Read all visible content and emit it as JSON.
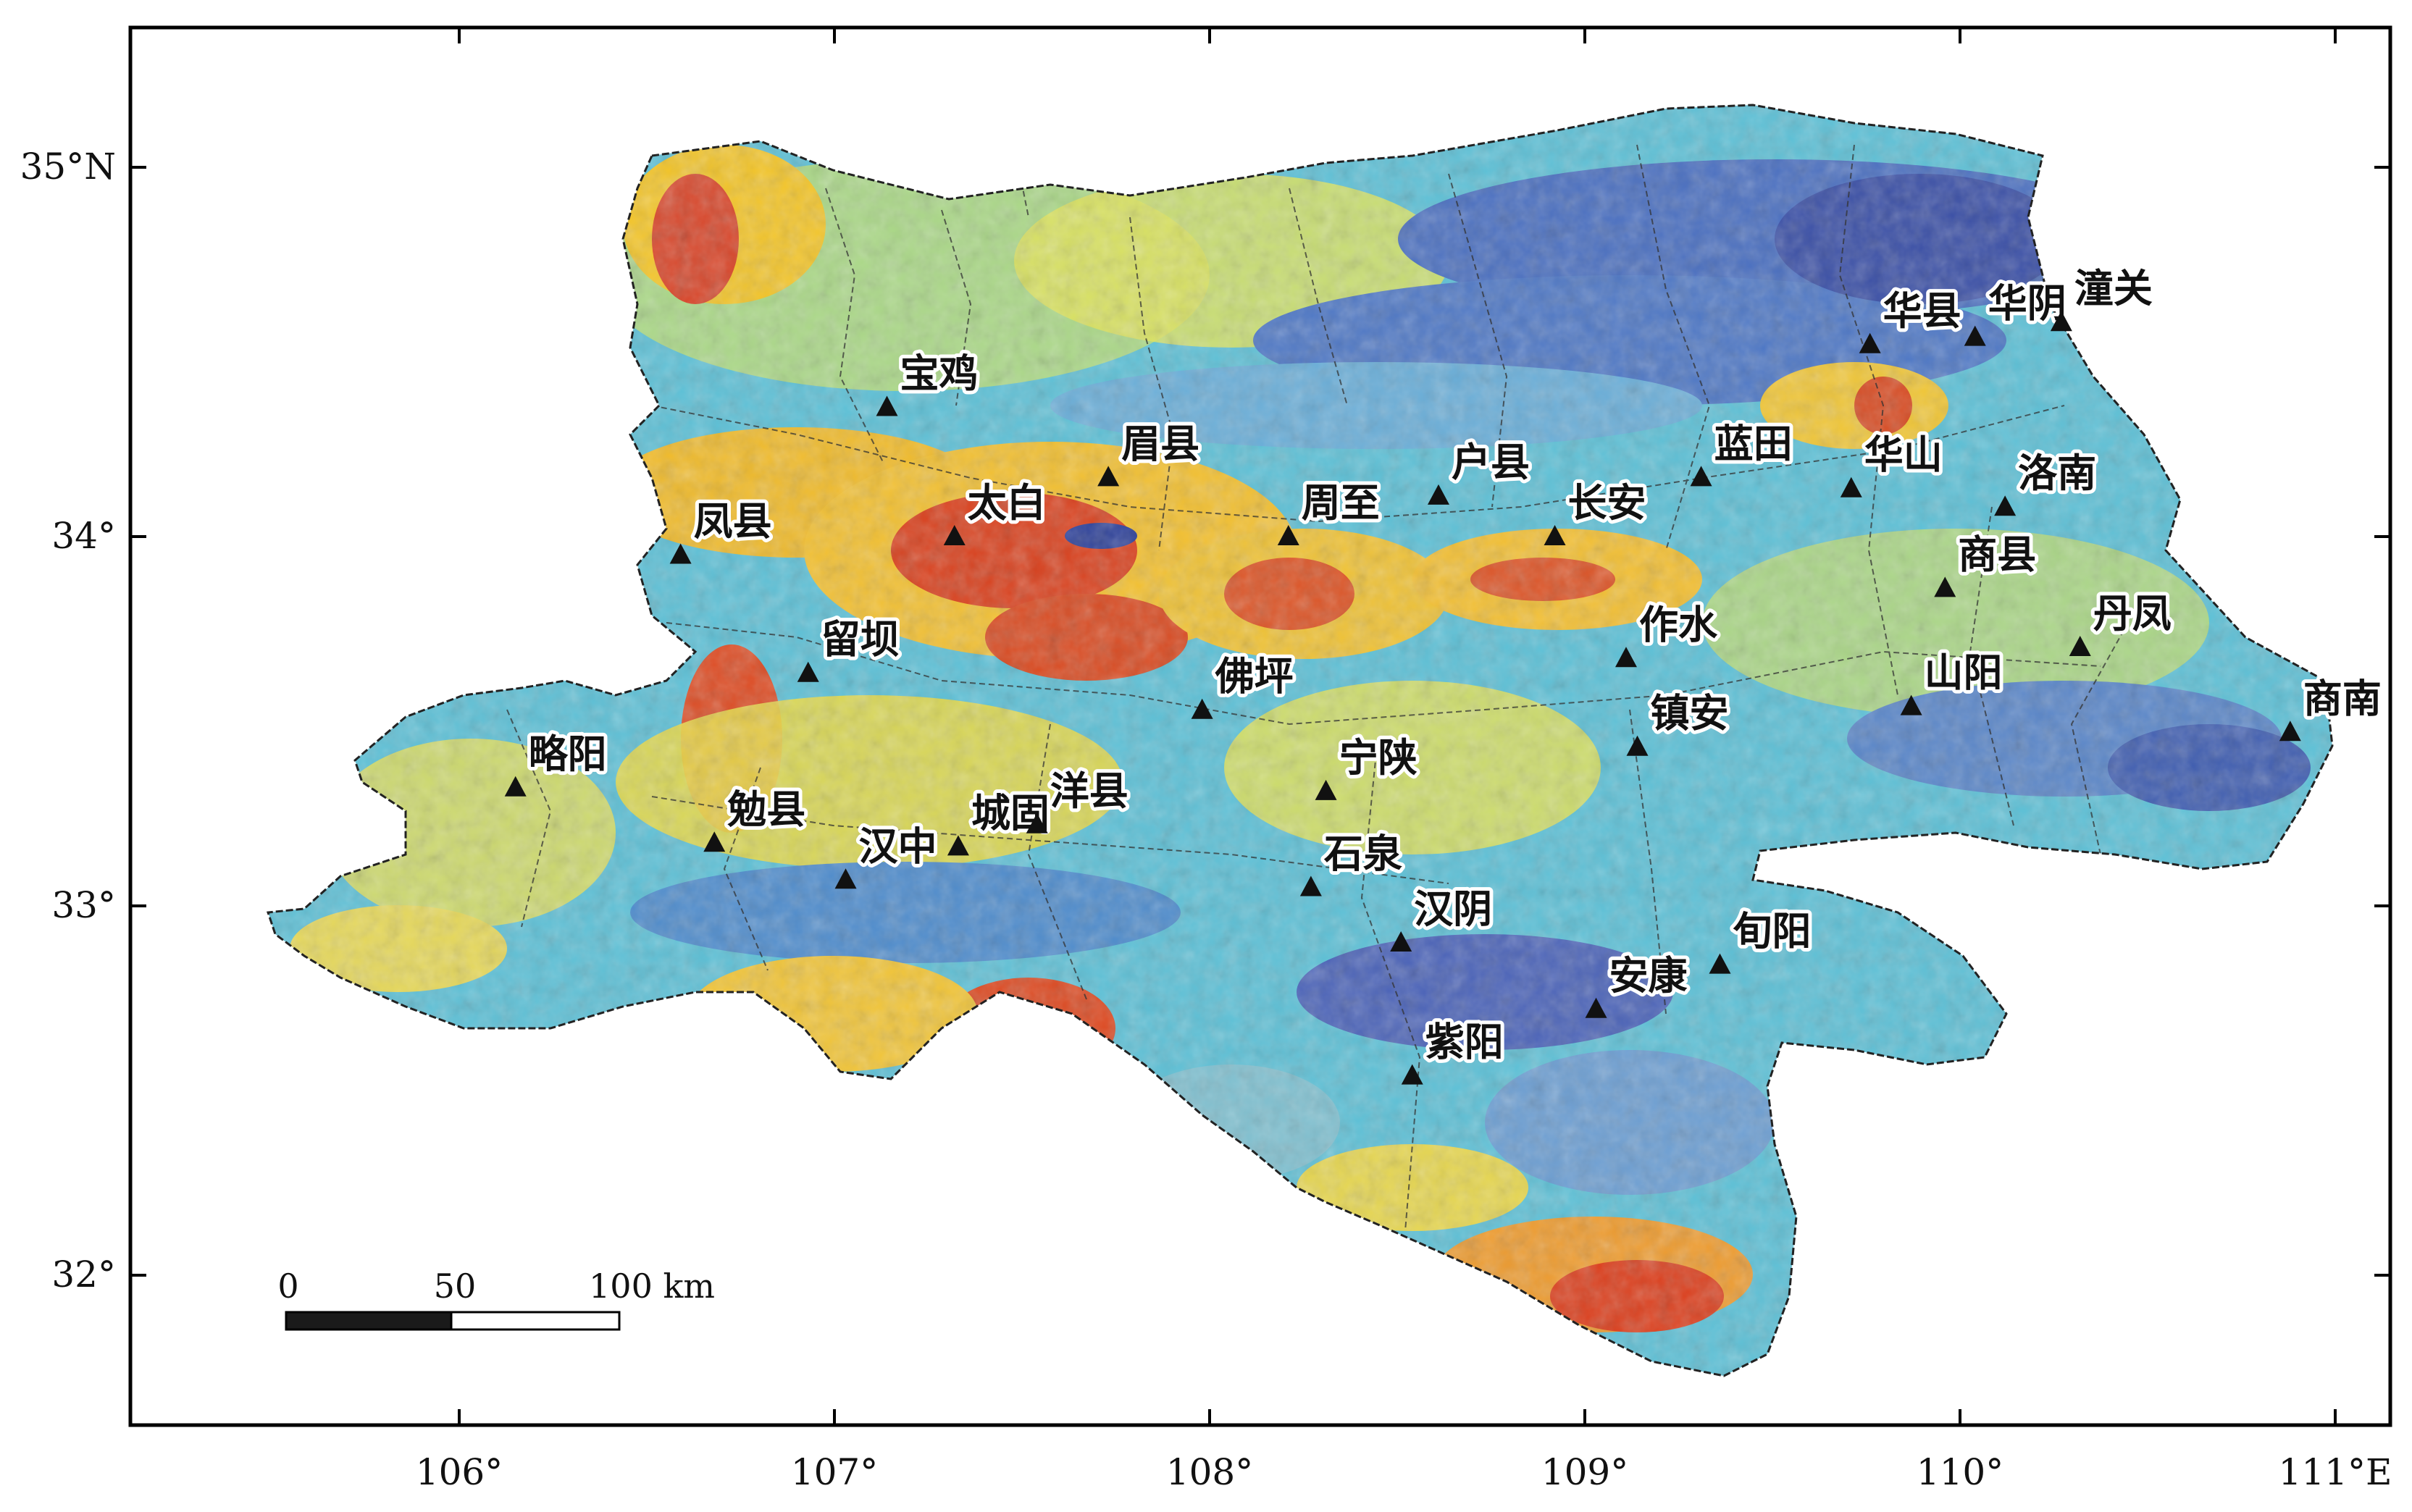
{
  "map": {
    "lon_ticks": [
      {
        "value": 106,
        "label": "106°"
      },
      {
        "value": 107,
        "label": "107°"
      },
      {
        "value": 108,
        "label": "108°"
      },
      {
        "value": 109,
        "label": "109°"
      },
      {
        "value": 110,
        "label": "110°"
      },
      {
        "value": 111,
        "label": "111°E"
      }
    ],
    "lat_ticks": [
      {
        "value": 35,
        "label": "35°N"
      },
      {
        "value": 34,
        "label": "34°"
      },
      {
        "value": 33,
        "label": "33°"
      },
      {
        "value": 32,
        "label": "32°"
      }
    ],
    "stations": [
      {
        "name": "宝鸡",
        "lon": 107.14,
        "lat": 34.35
      },
      {
        "name": "眉县",
        "lon": 107.73,
        "lat": 34.16
      },
      {
        "name": "户县",
        "lon": 108.61,
        "lat": 34.11
      },
      {
        "name": "蓝田",
        "lon": 109.31,
        "lat": 34.16
      },
      {
        "name": "华县",
        "lon": 109.76,
        "lat": 34.52
      },
      {
        "name": "华阴",
        "lon": 110.04,
        "lat": 34.54
      },
      {
        "name": "潼关",
        "lon": 110.27,
        "lat": 34.58
      },
      {
        "name": "华山",
        "lon": 109.71,
        "lat": 34.13
      },
      {
        "name": "洛南",
        "lon": 110.12,
        "lat": 34.08
      },
      {
        "name": "凤县",
        "lon": 106.59,
        "lat": 33.95
      },
      {
        "name": "太白",
        "lon": 107.32,
        "lat": 34.0
      },
      {
        "name": "周至",
        "lon": 108.21,
        "lat": 34.0
      },
      {
        "name": "长安",
        "lon": 108.92,
        "lat": 34.0
      },
      {
        "name": "商县",
        "lon": 109.96,
        "lat": 33.86
      },
      {
        "name": "留坝",
        "lon": 106.93,
        "lat": 33.63
      },
      {
        "name": "作水",
        "lon": 109.11,
        "lat": 33.67
      },
      {
        "name": "丹凤",
        "lon": 110.32,
        "lat": 33.7
      },
      {
        "name": "佛坪",
        "lon": 107.98,
        "lat": 33.53
      },
      {
        "name": "山阳",
        "lon": 109.87,
        "lat": 33.54
      },
      {
        "name": "商南",
        "lon": 110.88,
        "lat": 33.47
      },
      {
        "name": "镇安",
        "lon": 109.14,
        "lat": 33.43
      },
      {
        "name": "略阳",
        "lon": 106.15,
        "lat": 33.32
      },
      {
        "name": "宁陕",
        "lon": 108.31,
        "lat": 33.31
      },
      {
        "name": "勉县",
        "lon": 106.68,
        "lat": 33.17
      },
      {
        "name": "城固",
        "lon": 107.33,
        "lat": 33.16
      },
      {
        "name": "洋县",
        "lon": 107.54,
        "lat": 33.22
      },
      {
        "name": "汉中",
        "lon": 107.03,
        "lat": 33.07
      },
      {
        "name": "石泉",
        "lon": 108.27,
        "lat": 33.05
      },
      {
        "name": "汉阴",
        "lon": 108.51,
        "lat": 32.9
      },
      {
        "name": "旬阳",
        "lon": 109.36,
        "lat": 32.84
      },
      {
        "name": "安康",
        "lon": 109.03,
        "lat": 32.72
      },
      {
        "name": "紫阳",
        "lon": 108.54,
        "lat": 32.54
      }
    ],
    "scale_bar": {
      "labels": [
        "0",
        "50",
        "100 km"
      ]
    },
    "colors": {
      "high": "#d73a1d",
      "mid_high": "#f5c928",
      "mid": "#e6e85a",
      "mid_low": "#57c6d8",
      "low": "#3f5fb5",
      "lowest": "#2c3f8f",
      "marker": "#111111",
      "frame": "#000000"
    }
  }
}
